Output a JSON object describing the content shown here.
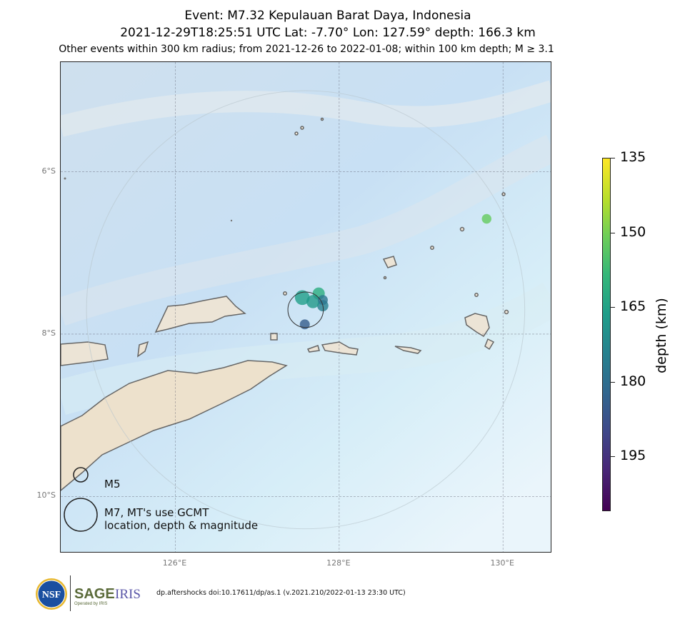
{
  "title": {
    "line1": "Event: M7.32 Kepulauan Barat Daya, Indonesia",
    "line2": "2021-12-29T18:25:51 UTC Lat: -7.70° Lon: 127.59° depth: 166.3 km",
    "line3": "Other events within 300 km radius; from 2021-12-26 to 2022-01-08; within 100 km depth; M ≥ 3.1"
  },
  "map": {
    "lat_range": [
      -10.7,
      -4.65
    ],
    "lon_range": [
      124.6,
      130.6
    ],
    "lat_ticks": [
      {
        "value": -6,
        "label": "6°S"
      },
      {
        "value": -8,
        "label": "8°S"
      },
      {
        "value": -10,
        "label": "10°S"
      }
    ],
    "lon_ticks": [
      {
        "value": 126,
        "label": "126°E"
      },
      {
        "value": 128,
        "label": "128°E"
      },
      {
        "value": 130,
        "label": "130°E"
      }
    ],
    "mainshock": {
      "lat": -7.7,
      "lon": 127.59,
      "depth": 166.3,
      "mag": 7.32
    },
    "events": [
      {
        "lon": 127.55,
        "lat": -7.55,
        "depth": 166,
        "mag": 5.5
      },
      {
        "lon": 127.75,
        "lat": -7.5,
        "depth": 162,
        "mag": 5.0
      },
      {
        "lon": 127.8,
        "lat": -7.65,
        "depth": 175,
        "mag": 4.8
      },
      {
        "lon": 127.68,
        "lat": -7.6,
        "depth": 168,
        "mag": 5.2
      },
      {
        "lon": 127.58,
        "lat": -7.88,
        "depth": 185,
        "mag": 4.5
      },
      {
        "lon": 127.8,
        "lat": -7.58,
        "depth": 178,
        "mag": 4.5
      },
      {
        "lon": 129.8,
        "lat": -6.58,
        "depth": 152,
        "mag": 4.4
      }
    ]
  },
  "colorbar": {
    "title": "depth (km)",
    "range": [
      135,
      206
    ],
    "ticks": [
      "135",
      "150",
      "165",
      "180",
      "195"
    ]
  },
  "legend": {
    "small_label": "M5",
    "large_label_line1": "M7, MT's use GCMT",
    "large_label_line2": "location, depth & magnitude"
  },
  "footer": {
    "citation": "dp.aftershocks doi:10.17611/dp/as.1 (v.2021.210/2022-01-13 23:30 UTC)",
    "nsf_logo_text": "NSF",
    "sage_logo_text": "SAGE",
    "iris_logo_text": "IRIS",
    "sage_sub_text": "Operated by IRIS"
  }
}
